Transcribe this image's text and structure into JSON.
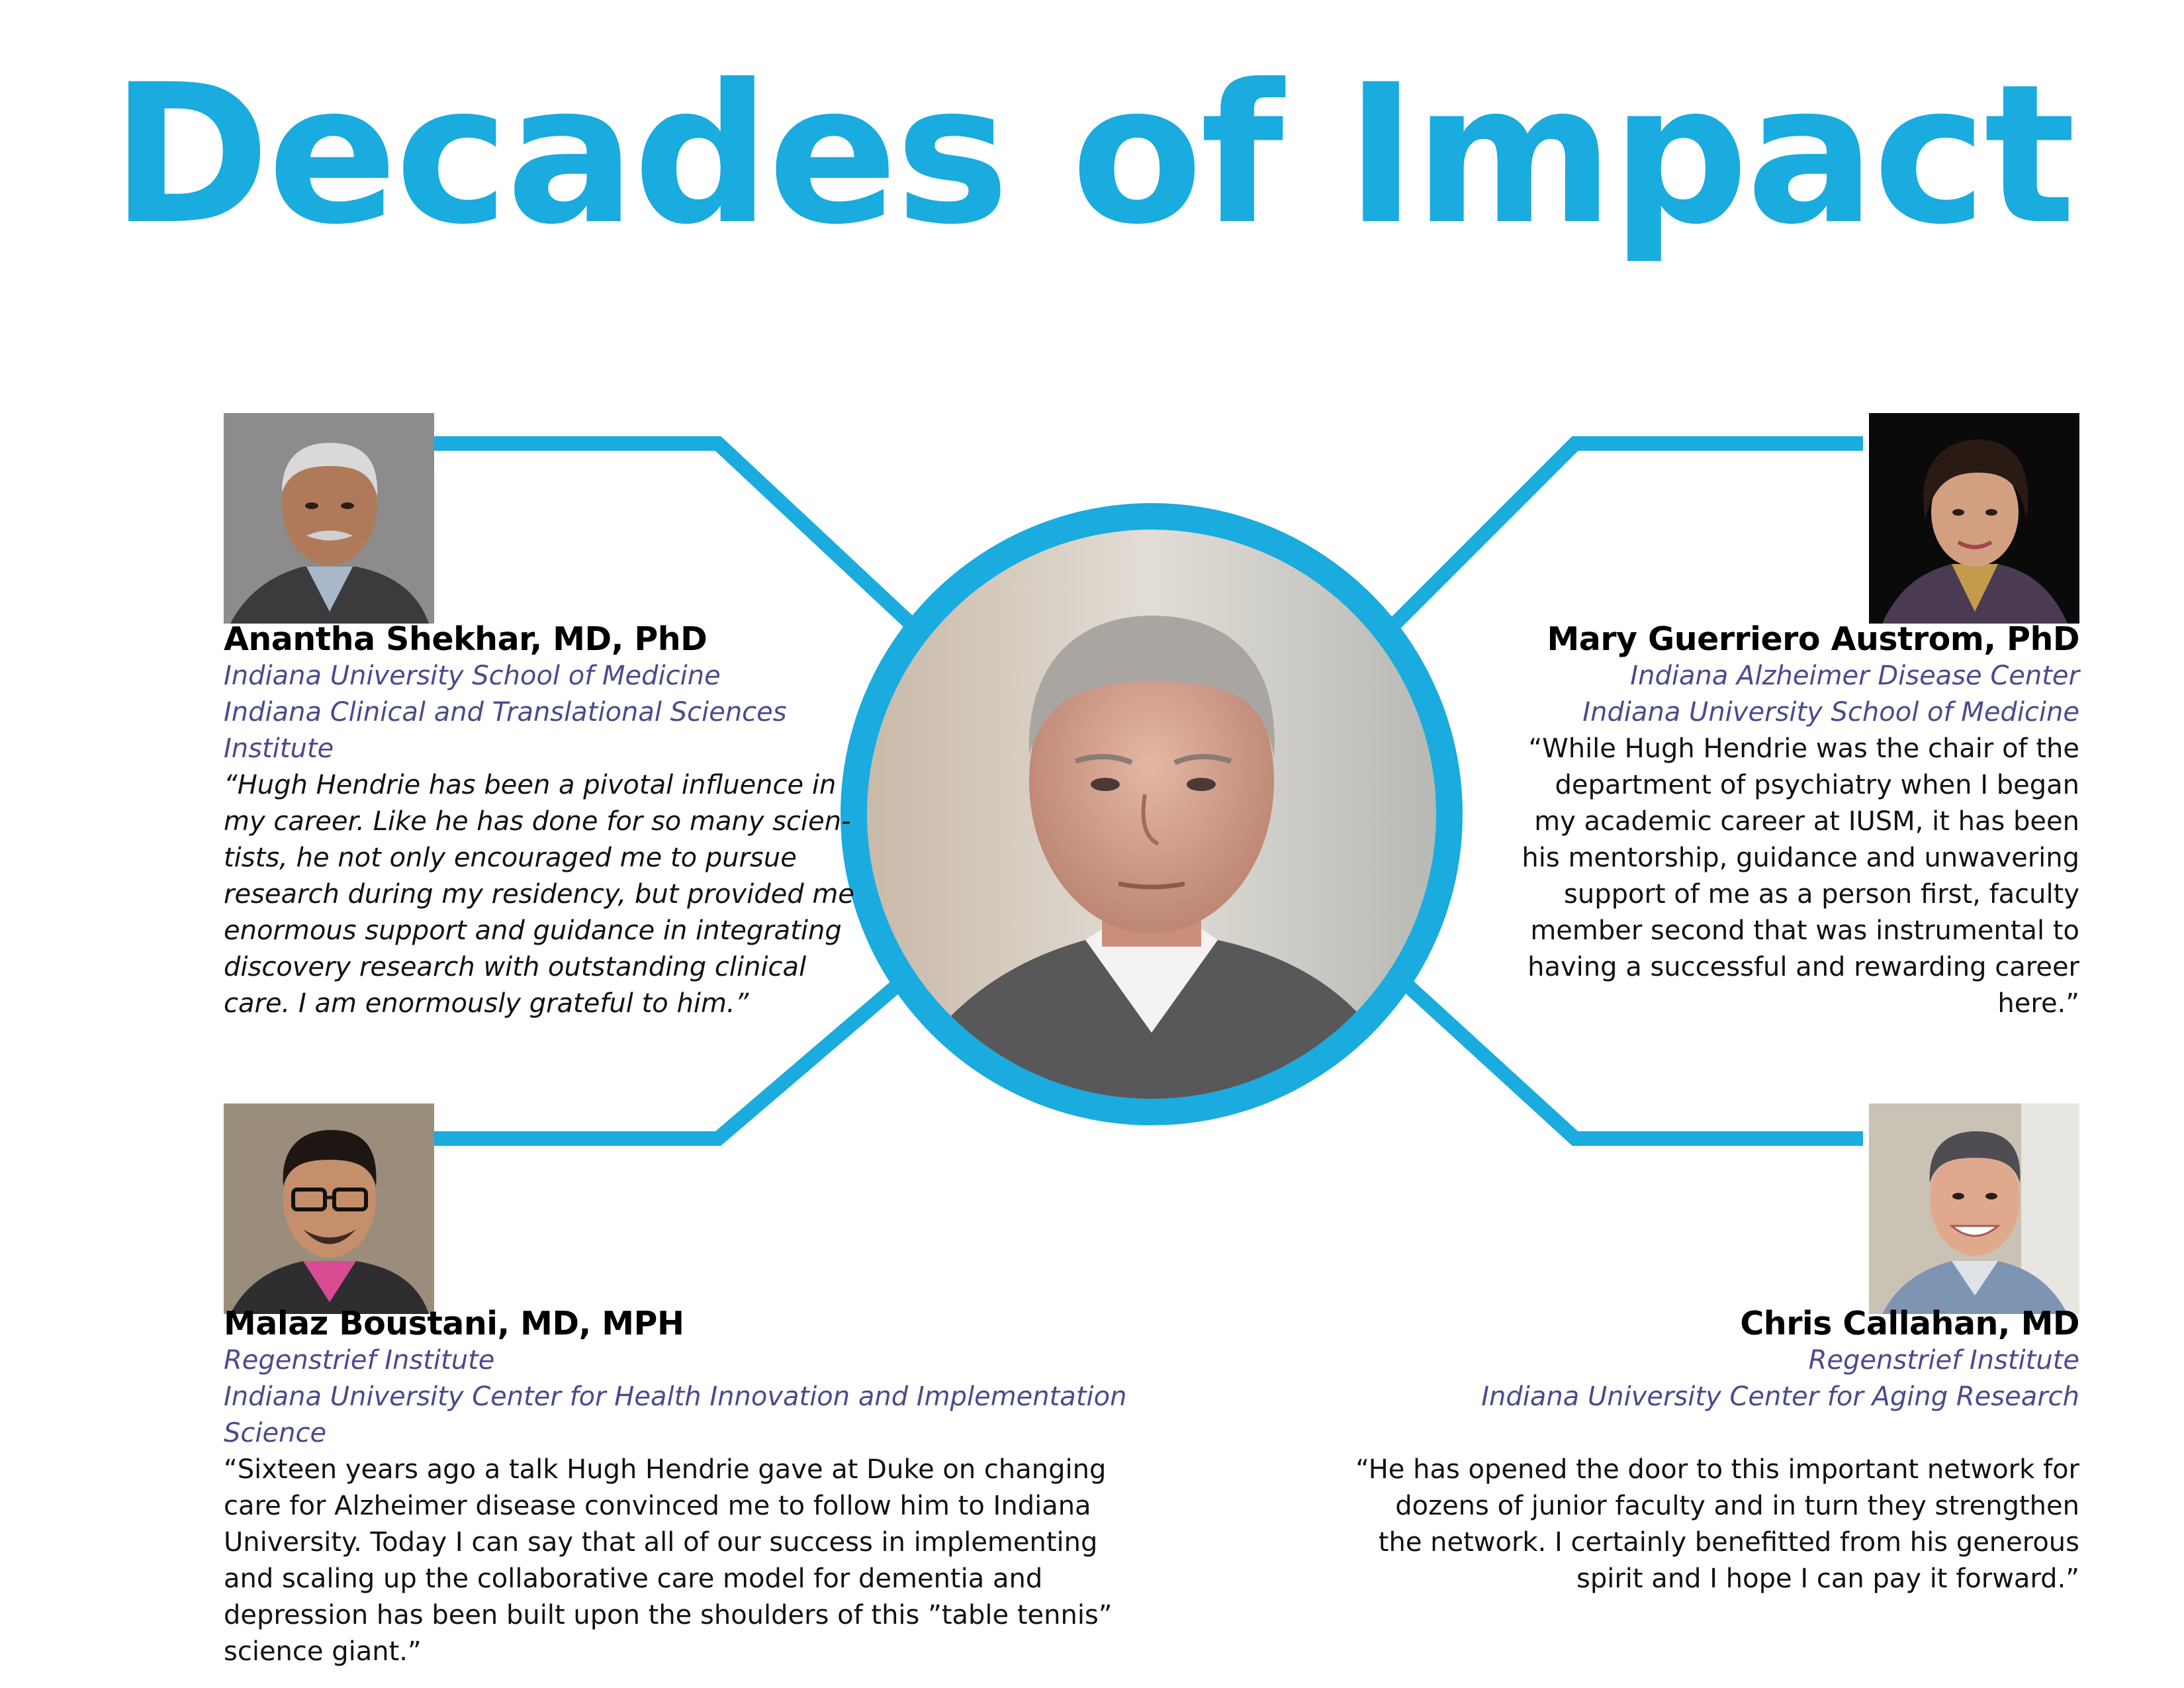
{
  "title": "Decades of Impact",
  "colors": {
    "accent": "#1aabdf",
    "affiliation": "#4a4a8e"
  },
  "people": [
    {
      "name": "Anantha Shekhar, MD, PhD",
      "affiliation_lines": [
        "Indiana University School of Medicine",
        "Indiana Clinical and Translational Sciences",
        "Institute"
      ],
      "quote_lines": [
        "“Hugh Hendrie has been a pivotal influence in",
        "my career. Like he has done for so many scien-",
        "tists, he not only encouraged me to pursue",
        "research during my residency, but provided me",
        "enormous support and guidance in integrating",
        "discovery research with outstanding clinical",
        "care. I am enormously grateful to him.”"
      ]
    },
    {
      "name": "Mary Guerriero Austrom, PhD",
      "affiliation_lines": [
        "Indiana Alzheimer Disease Center",
        "Indiana University School of Medicine"
      ],
      "quote_lines": [
        "“While Hugh Hendrie was the chair of the",
        "department of psychiatry when I began",
        "my academic career at IUSM, it has been",
        "his mentorship, guidance and unwavering",
        "support of me as a person first, faculty",
        "member second that was instrumental to",
        "having a successful and rewarding career",
        "here.”"
      ]
    },
    {
      "name": "Malaz Boustani, MD, MPH",
      "affiliation_lines": [
        "Regenstrief Institute",
        "Indiana University Center for Health Innovation and Implementation",
        "Science"
      ],
      "quote_lines": [
        "“Sixteen years ago a talk Hugh Hendrie gave at Duke on changing",
        "care for Alzheimer disease convinced me to follow him to Indiana",
        "University. Today I can say that all of our success in implementing",
        "and scaling up the collaborative care model for dementia and",
        "depression has been built upon the shoulders of this ”table tennis”",
        "science giant.”"
      ]
    },
    {
      "name": "Chris Callahan, MD",
      "affiliation_lines": [
        "Regenstrief Institute",
        "Indiana University Center for Aging Research"
      ],
      "quote_lines": [
        "“He has opened the door to this important network for",
        "dozens of junior faculty and in turn they strengthen",
        "the network.  I certainly benefitted from his generous",
        "spirit and I hope I can pay it forward.”"
      ]
    }
  ]
}
